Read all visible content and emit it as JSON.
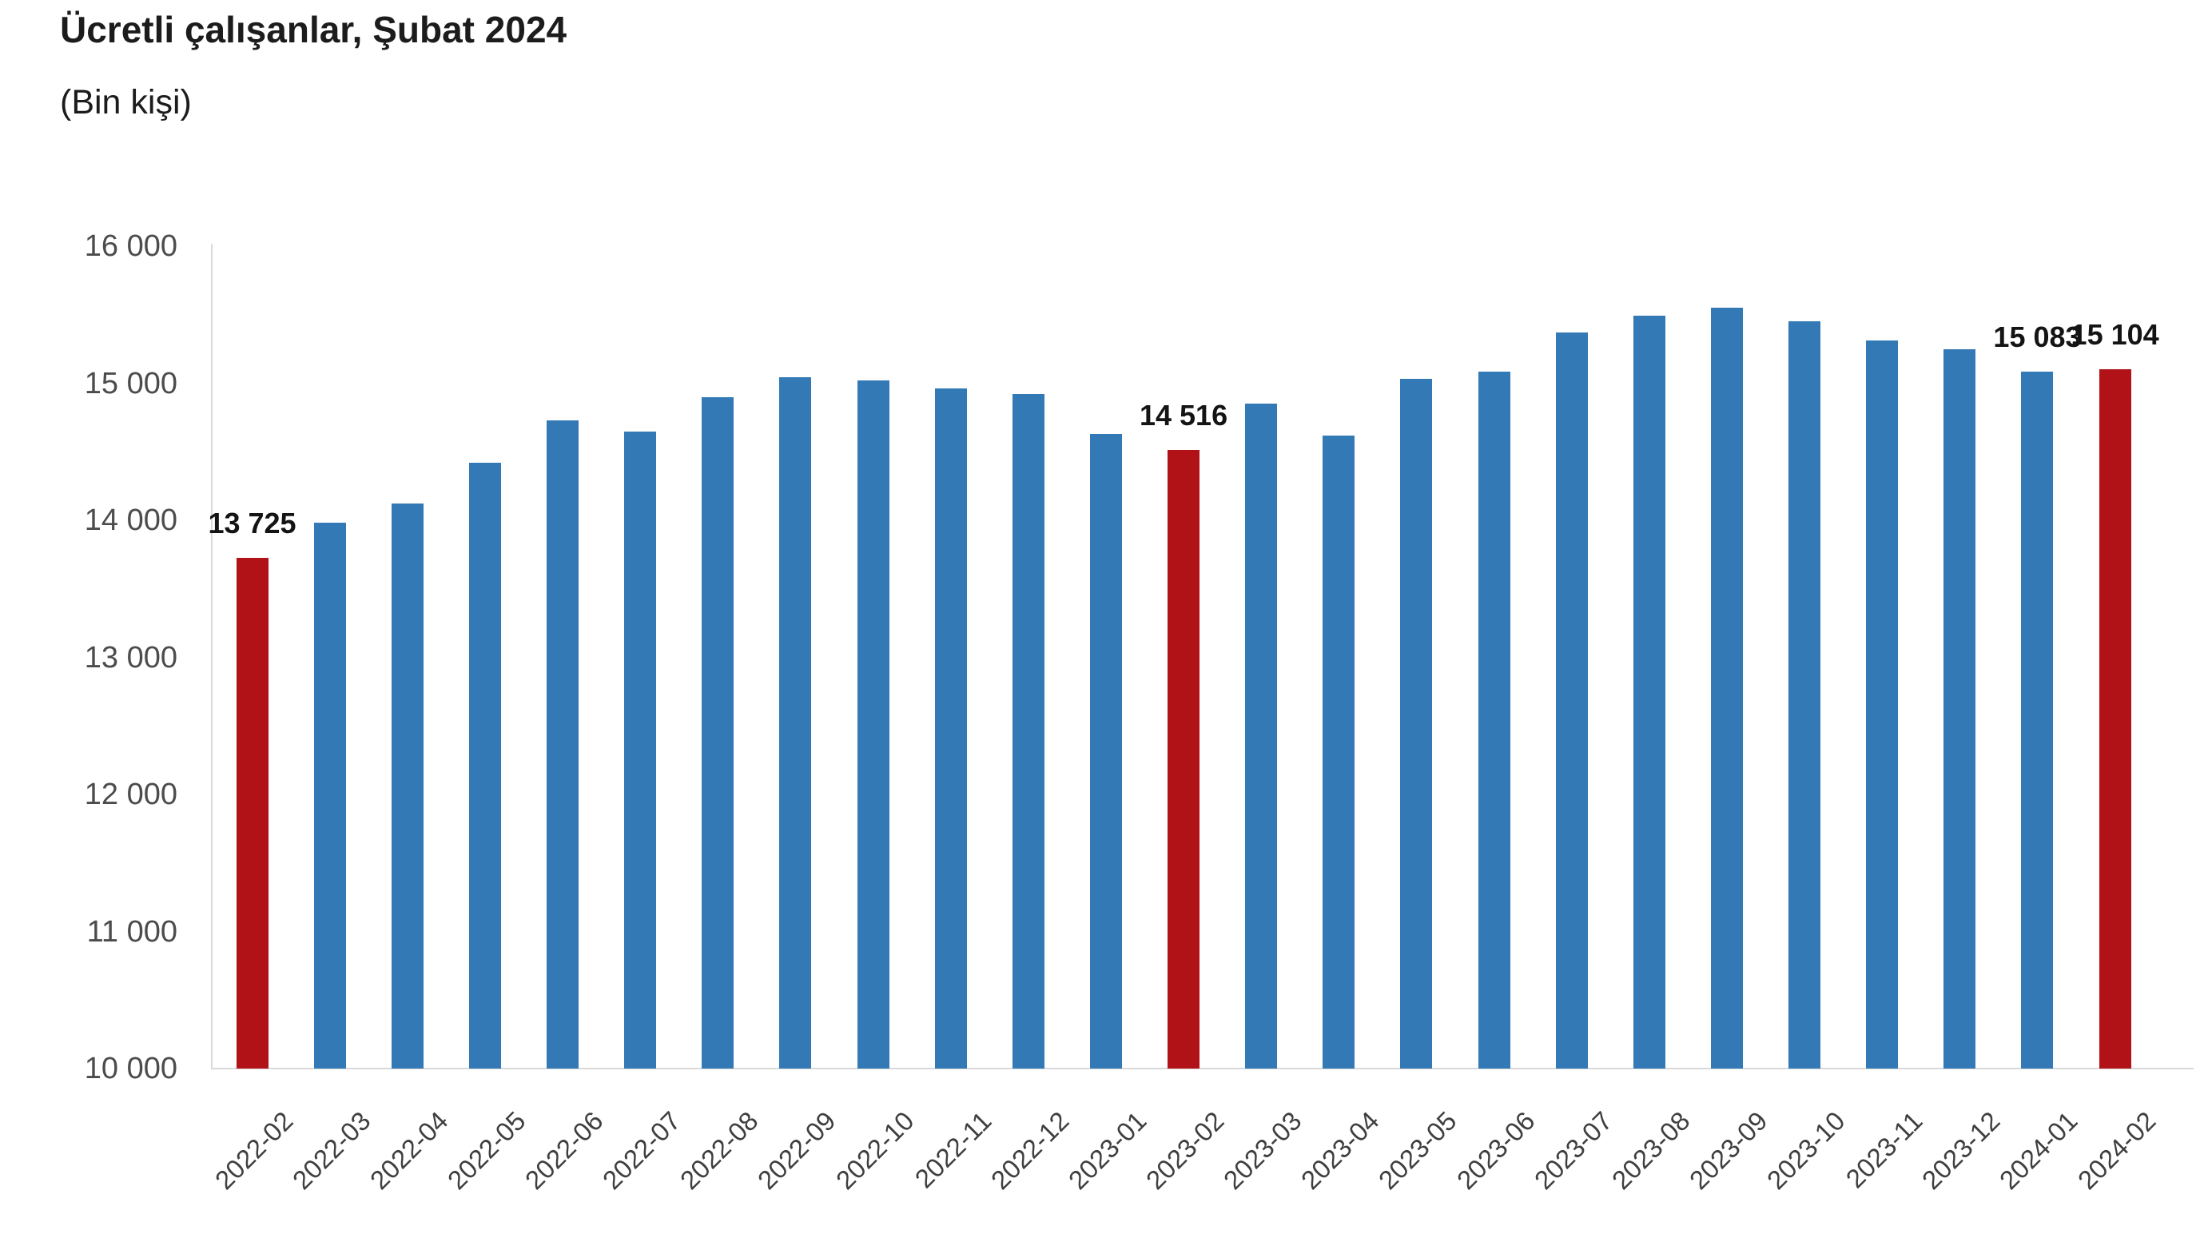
{
  "header": {
    "title": "Ücretli çalışanlar, Şubat 2024",
    "subtitle": "(Bin kişi)"
  },
  "chart_data": {
    "type": "bar",
    "title": "Ücretli çalışanlar, Şubat 2024",
    "subtitle": "(Bin kişi)",
    "categories": [
      "2022-02",
      "2022-03",
      "2022-04",
      "2022-05",
      "2022-06",
      "2022-07",
      "2022-08",
      "2022-09",
      "2022-10",
      "2022-11",
      "2022-12",
      "2023-01",
      "2023-02",
      "2023-03",
      "2023-04",
      "2023-05",
      "2023-06",
      "2023-07",
      "2023-08",
      "2023-09",
      "2023-10",
      "2023-11",
      "2023-12",
      "2024-01",
      "2024-02"
    ],
    "values": [
      13725,
      13980,
      14120,
      14420,
      14730,
      14650,
      14900,
      15045,
      15020,
      14960,
      14920,
      14630,
      14516,
      14850,
      14620,
      15030,
      15085,
      15370,
      15490,
      15550,
      15450,
      15310,
      15250,
      15083,
      15104
    ],
    "highlight_indices": [
      0,
      12,
      24
    ],
    "data_labels": [
      {
        "index": 0,
        "text": "13 725"
      },
      {
        "index": 12,
        "text": "14 516"
      },
      {
        "index": 23,
        "text": "15 083"
      },
      {
        "index": 24,
        "text": "15 104"
      }
    ],
    "xlabel": "",
    "ylabel": "",
    "ylim": [
      10000,
      16000
    ],
    "ytick_values": [
      16000,
      15000,
      14000,
      13000,
      12000,
      11000,
      10000
    ],
    "ytick_labels": [
      "16 000",
      "15 000",
      "14 000",
      "13 000",
      "12 000",
      "11 000",
      "10 000"
    ],
    "grid": false,
    "legend": "none",
    "colors": {
      "bar": "#3279b5",
      "highlight": "#b11217",
      "axis_line": "#d9d9d9",
      "ytick_text": "#4c4c4c",
      "xtick_text": "#3f3f3f",
      "label_text": "#141414",
      "title_text": "#1c1c1c"
    }
  }
}
